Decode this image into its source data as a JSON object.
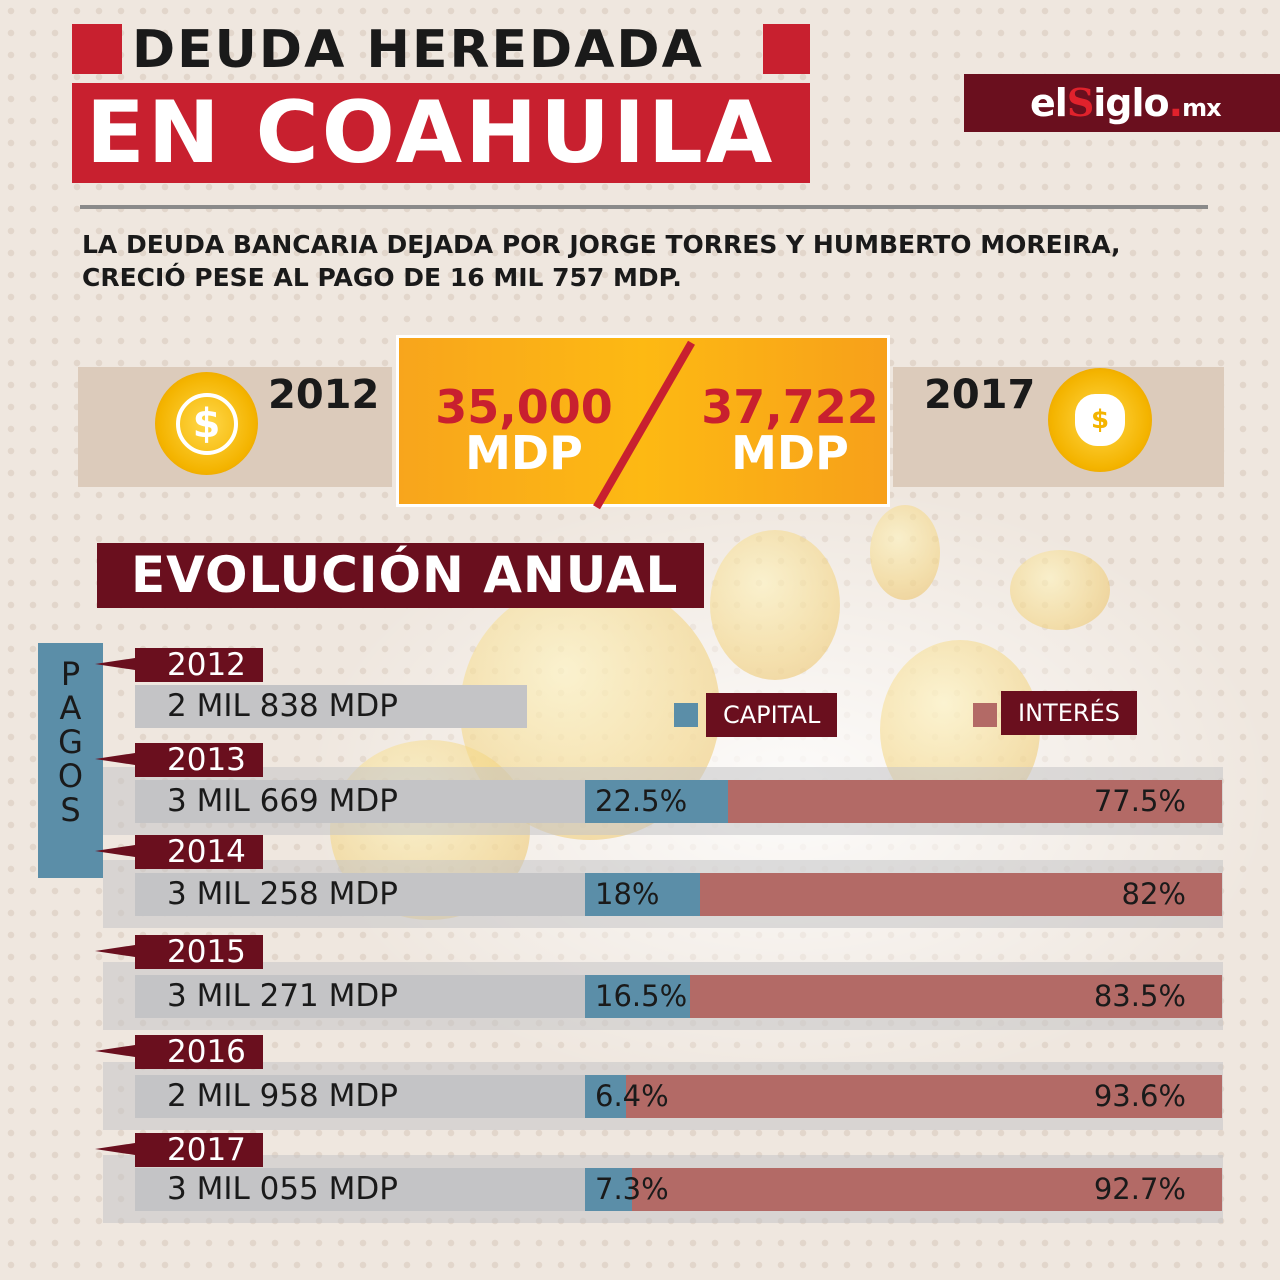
{
  "header": {
    "title_line1": "DEUDA HEREDADA",
    "title_line2": "EN COAHUILA",
    "logo": {
      "el": "el",
      "s": "S",
      "iglo": "iglo",
      "dot": ".",
      "mx": "mx"
    },
    "subtitle_line1": "LA DEUDA BANCARIA DEJADA POR JORGE TORRES Y HUMBERTO MOREIRA,",
    "subtitle_line2": "CRECIÓ PESE AL PAGO DE 16 MIL 757 MDP."
  },
  "comparison": {
    "start_year": "2012",
    "start_value": "35,000",
    "end_year": "2017",
    "end_value": "37,722",
    "unit": "MDP",
    "start_icon": "coin-icon",
    "end_icon": "money-bag-icon",
    "coin_symbol": "$"
  },
  "section_title": "EVOLUCIÓN ANUAL",
  "side_label": [
    "P",
    "A",
    "G",
    "O",
    "S"
  ],
  "colors": {
    "capital": "#5b8ea8",
    "interes": "#b36a66",
    "maroon": "#6a0f1e",
    "red": "#c8202f"
  },
  "chart_data": {
    "type": "bar",
    "stacked": true,
    "orientation": "horizontal",
    "unit": "%",
    "legend": [
      "CAPITAL",
      "INTERÉS"
    ],
    "legend_placement": "top-right",
    "categories": [
      "2012",
      "2013",
      "2014",
      "2015",
      "2016",
      "2017"
    ],
    "payments": [
      "2 MIL 838 MDP",
      "3 MIL 669 MDP",
      "3 MIL 258 MDP",
      "3 MIL 271 MDP",
      "2 MIL 958 MDP",
      "3 MIL 055 MDP"
    ],
    "series": [
      {
        "name": "CAPITAL",
        "values": [
          null,
          22.5,
          18,
          16.5,
          6.4,
          7.3
        ],
        "labels": [
          "",
          "22.5%",
          "18%",
          "16.5%",
          "6.4%",
          "7.3%"
        ]
      },
      {
        "name": "INTERÉS",
        "values": [
          null,
          77.5,
          82,
          83.5,
          93.6,
          92.7
        ],
        "labels": [
          "",
          "77.5%",
          "82%",
          "83.5%",
          "93.6%",
          "92.7%"
        ]
      }
    ]
  }
}
